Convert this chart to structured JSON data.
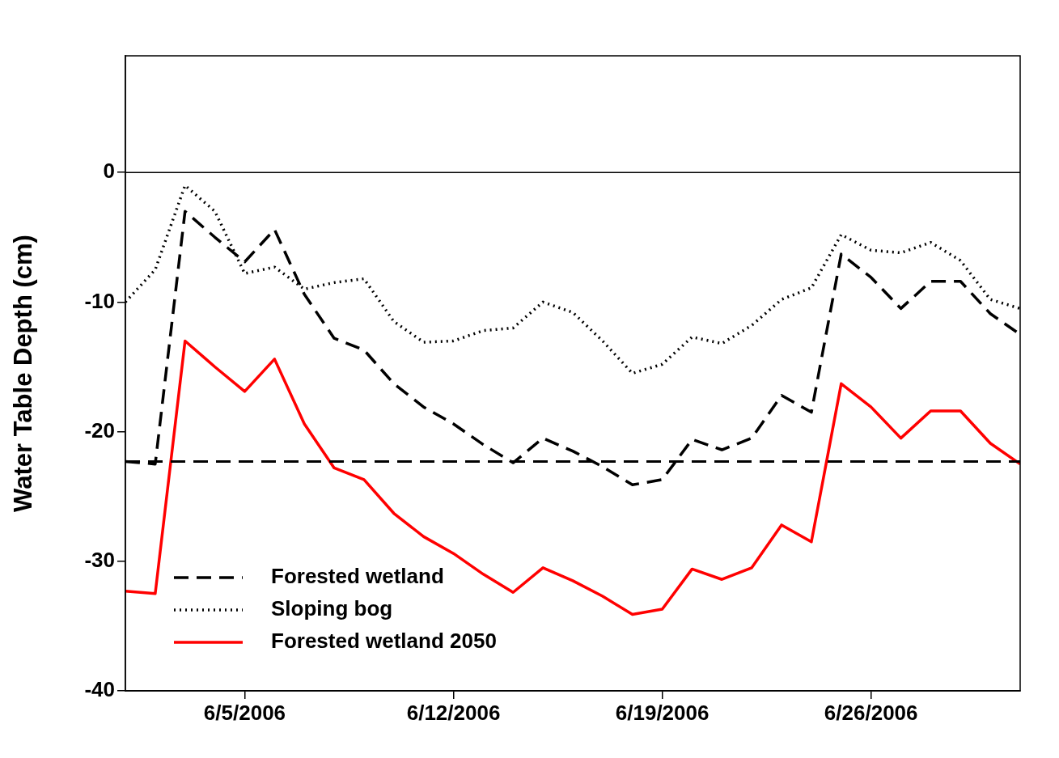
{
  "chart_data": {
    "type": "line",
    "ylabel": "Water Table Depth (cm)",
    "x": [
      "2006-06-01",
      "2006-06-02",
      "2006-06-03",
      "2006-06-04",
      "2006-06-05",
      "2006-06-06",
      "2006-06-07",
      "2006-06-08",
      "2006-06-09",
      "2006-06-10",
      "2006-06-11",
      "2006-06-12",
      "2006-06-13",
      "2006-06-14",
      "2006-06-15",
      "2006-06-16",
      "2006-06-17",
      "2006-06-18",
      "2006-06-19",
      "2006-06-20",
      "2006-06-21",
      "2006-06-22",
      "2006-06-23",
      "2006-06-24",
      "2006-06-25",
      "2006-06-26",
      "2006-06-27",
      "2006-06-28",
      "2006-06-29",
      "2006-06-30",
      "2006-07-01"
    ],
    "series": [
      {
        "name": "Forested wetland",
        "color": "#000000",
        "line_style": "dashed",
        "values": [
          -22.3,
          -22.5,
          -3.0,
          -5.0,
          -6.9,
          -4.4,
          -9.4,
          -12.8,
          -13.7,
          -16.3,
          -18.1,
          -19.4,
          -21.0,
          -22.4,
          -20.5,
          -21.5,
          -22.7,
          -24.1,
          -23.7,
          -20.6,
          -21.4,
          -20.5,
          -17.2,
          -18.5,
          -6.3,
          -8.1,
          -10.5,
          -8.4,
          -8.4,
          -10.9,
          -12.5
        ]
      },
      {
        "name": "Sloping bog",
        "color": "#000000",
        "line_style": "dotted",
        "values": [
          -10.0,
          -7.5,
          -1.0,
          -3.0,
          -7.8,
          -7.3,
          -9.0,
          -8.5,
          -8.2,
          -11.5,
          -13.1,
          -13.0,
          -12.2,
          -12.0,
          -10.0,
          -10.8,
          -13.0,
          -15.5,
          -14.8,
          -12.7,
          -13.2,
          -11.8,
          -9.8,
          -8.9,
          -4.8,
          -6.0,
          -6.2,
          -5.4,
          -6.8,
          -9.8,
          -10.5
        ]
      },
      {
        "name": "Forested wetland 2050",
        "color": "#ff0000",
        "line_style": "solid",
        "values": [
          -32.3,
          -32.5,
          -13.0,
          -15.0,
          -16.9,
          -14.4,
          -19.4,
          -22.8,
          -23.7,
          -26.3,
          -28.1,
          -29.4,
          -31.0,
          -32.4,
          -30.5,
          -31.5,
          -32.7,
          -34.1,
          -33.7,
          -30.6,
          -31.4,
          -30.5,
          -27.2,
          -28.5,
          -16.3,
          -18.1,
          -20.5,
          -18.4,
          -18.4,
          -20.9,
          -22.5
        ]
      }
    ],
    "xlim": [
      "2006-06-01",
      "2006-07-01"
    ],
    "xticks": [
      {
        "value": "2006-06-05",
        "label": "6/5/2006"
      },
      {
        "value": "2006-06-12",
        "label": "6/12/2006"
      },
      {
        "value": "2006-06-19",
        "label": "6/19/2006"
      },
      {
        "value": "2006-06-26",
        "label": "6/26/2006"
      }
    ],
    "ylim": [
      -40,
      9
    ],
    "yticks": [
      -40,
      -30,
      -20,
      -10,
      0
    ],
    "ref_lines": [
      {
        "axis": "y",
        "value": 0,
        "color": "#000000",
        "line_style": "solid"
      },
      {
        "axis": "y",
        "value": -22.3,
        "color": "#000000",
        "line_style": "dashed"
      }
    ],
    "legend": "bottom left",
    "grid": false
  }
}
